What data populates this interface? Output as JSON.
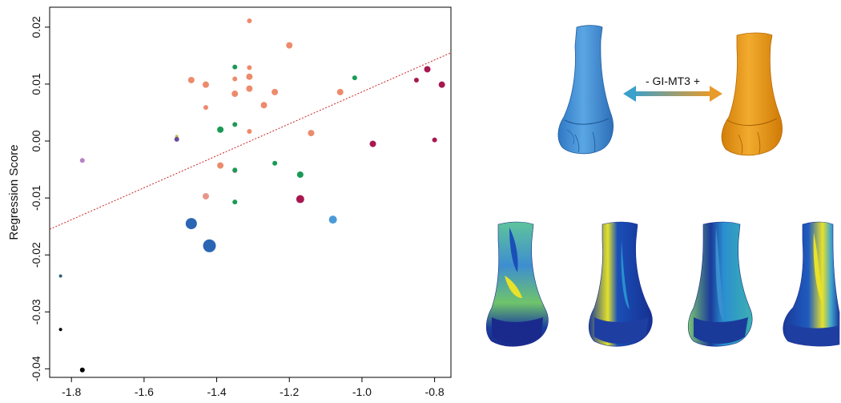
{
  "chart_data": {
    "type": "scatter",
    "title": "",
    "xlabel": "",
    "ylabel": "Regression Score",
    "xlim": [
      -1.86,
      -0.755
    ],
    "ylim": [
      -0.0415,
      0.0235
    ],
    "xticks": [
      -1.8,
      -1.6,
      -1.4,
      -1.2,
      -1.0,
      -0.8
    ],
    "xtick_labels": [
      "-1.8",
      "-1.6",
      "-1.4",
      "-1.2",
      "-1.0",
      "-0.8"
    ],
    "yticks": [
      -0.04,
      -0.03,
      -0.02,
      -0.01,
      0.0,
      0.01,
      0.02
    ],
    "ytick_labels": [
      "-0.04",
      "-0.03",
      "-0.02",
      "-0.01",
      "0.00",
      "0.01",
      "0.02"
    ],
    "grid": false,
    "legend": "none",
    "regression_line": {
      "style": "dotted",
      "color": "#cc2222",
      "x": [
        -1.86,
        -0.755
      ],
      "y": [
        -0.0155,
        0.0155
      ]
    },
    "points": [
      {
        "x": -1.31,
        "y": 0.0211,
        "color": "#ec8b6c",
        "size": 3
      },
      {
        "x": -1.2,
        "y": 0.0168,
        "color": "#ec8b6c",
        "size": 4
      },
      {
        "x": -1.31,
        "y": 0.0129,
        "color": "#ec8b6c",
        "size": 3
      },
      {
        "x": -1.35,
        "y": 0.0109,
        "color": "#ec8b6c",
        "size": 3
      },
      {
        "x": -1.31,
        "y": 0.0113,
        "color": "#ec8b6c",
        "size": 4
      },
      {
        "x": -1.47,
        "y": 0.0107,
        "color": "#ec8b6c",
        "size": 4
      },
      {
        "x": -1.43,
        "y": 0.0099,
        "color": "#ec8b6c",
        "size": 4
      },
      {
        "x": -1.31,
        "y": 0.0092,
        "color": "#ec8b6c",
        "size": 4
      },
      {
        "x": -1.35,
        "y": 0.0083,
        "color": "#ec8b6c",
        "size": 4
      },
      {
        "x": -1.24,
        "y": 0.0086,
        "color": "#ec8b6c",
        "size": 4
      },
      {
        "x": -1.27,
        "y": 0.0063,
        "color": "#ec8b6c",
        "size": 4
      },
      {
        "x": -1.43,
        "y": 0.0059,
        "color": "#ec8b6c",
        "size": 3
      },
      {
        "x": -1.06,
        "y": 0.0086,
        "color": "#ec8b6c",
        "size": 4
      },
      {
        "x": -1.31,
        "y": 0.0017,
        "color": "#ec8b6c",
        "size": 3
      },
      {
        "x": -1.14,
        "y": 0.0014,
        "color": "#ec8b6c",
        "size": 4
      },
      {
        "x": -1.39,
        "y": -0.0043,
        "color": "#ec8b6c",
        "size": 4
      },
      {
        "x": -1.43,
        "y": -0.0097,
        "color": "#e8968a",
        "size": 4
      },
      {
        "x": -1.35,
        "y": -0.0052,
        "color": "#d4879a",
        "size": 3
      },
      {
        "x": -1.35,
        "y": 0.013,
        "color": "#1a9a55",
        "size": 3
      },
      {
        "x": -1.35,
        "y": 0.0029,
        "color": "#1a9a55",
        "size": 3
      },
      {
        "x": -1.02,
        "y": 0.0111,
        "color": "#1a9a55",
        "size": 3
      },
      {
        "x": -1.39,
        "y": 0.002,
        "color": "#1a9a55",
        "size": 4
      },
      {
        "x": -1.24,
        "y": -0.0039,
        "color": "#1a9a55",
        "size": 3
      },
      {
        "x": -1.35,
        "y": -0.0051,
        "color": "#1a9a55",
        "size": 3
      },
      {
        "x": -1.17,
        "y": -0.0059,
        "color": "#1a9a55",
        "size": 4
      },
      {
        "x": -1.35,
        "y": -0.0107,
        "color": "#1a9a55",
        "size": 3
      },
      {
        "x": -0.82,
        "y": 0.0126,
        "color": "#a8174f",
        "size": 4
      },
      {
        "x": -0.85,
        "y": 0.0107,
        "color": "#a8174f",
        "size": 3
      },
      {
        "x": -0.78,
        "y": 0.0099,
        "color": "#a8174f",
        "size": 4
      },
      {
        "x": -0.97,
        "y": -0.0005,
        "color": "#a8174f",
        "size": 4
      },
      {
        "x": -0.8,
        "y": 0.0002,
        "color": "#a8174f",
        "size": 3
      },
      {
        "x": -1.17,
        "y": -0.0102,
        "color": "#a8174f",
        "size": 5
      },
      {
        "x": -1.51,
        "y": 0.0008,
        "color": "#c2b84a",
        "size": 2
      },
      {
        "x": -1.51,
        "y": 0.0003,
        "color": "#6a4a9c",
        "size": 3
      },
      {
        "x": -1.77,
        "y": -0.0034,
        "color": "#b882c6",
        "size": 3
      },
      {
        "x": -1.08,
        "y": -0.0138,
        "color": "#4a9ad8",
        "size": 5
      },
      {
        "x": -1.47,
        "y": -0.0145,
        "color": "#2a66b3",
        "size": 7
      },
      {
        "x": -1.42,
        "y": -0.0184,
        "color": "#2a66b3",
        "size": 8
      },
      {
        "x": -1.83,
        "y": -0.0237,
        "color": "#2a5f78",
        "size": 2
      },
      {
        "x": -1.83,
        "y": -0.0331,
        "color": "#000000",
        "size": 2
      },
      {
        "x": -1.77,
        "y": -0.0402,
        "color": "#000000",
        "size": 3
      }
    ]
  },
  "annotation": {
    "arrow_label": "-  GI-MT3 +",
    "arrow_colors": [
      "#3aa0cc",
      "#e89a2a"
    ]
  },
  "renderings": {
    "top": [
      {
        "name": "blue-bone-model",
        "color": "#4a94d6"
      },
      {
        "name": "orange-bone-model",
        "color": "#e89a18"
      }
    ],
    "heatmap_palette": [
      "#1a2a8c",
      "#1a5fc2",
      "#28a8c8",
      "#7ccc7a",
      "#e8e22a"
    ]
  }
}
